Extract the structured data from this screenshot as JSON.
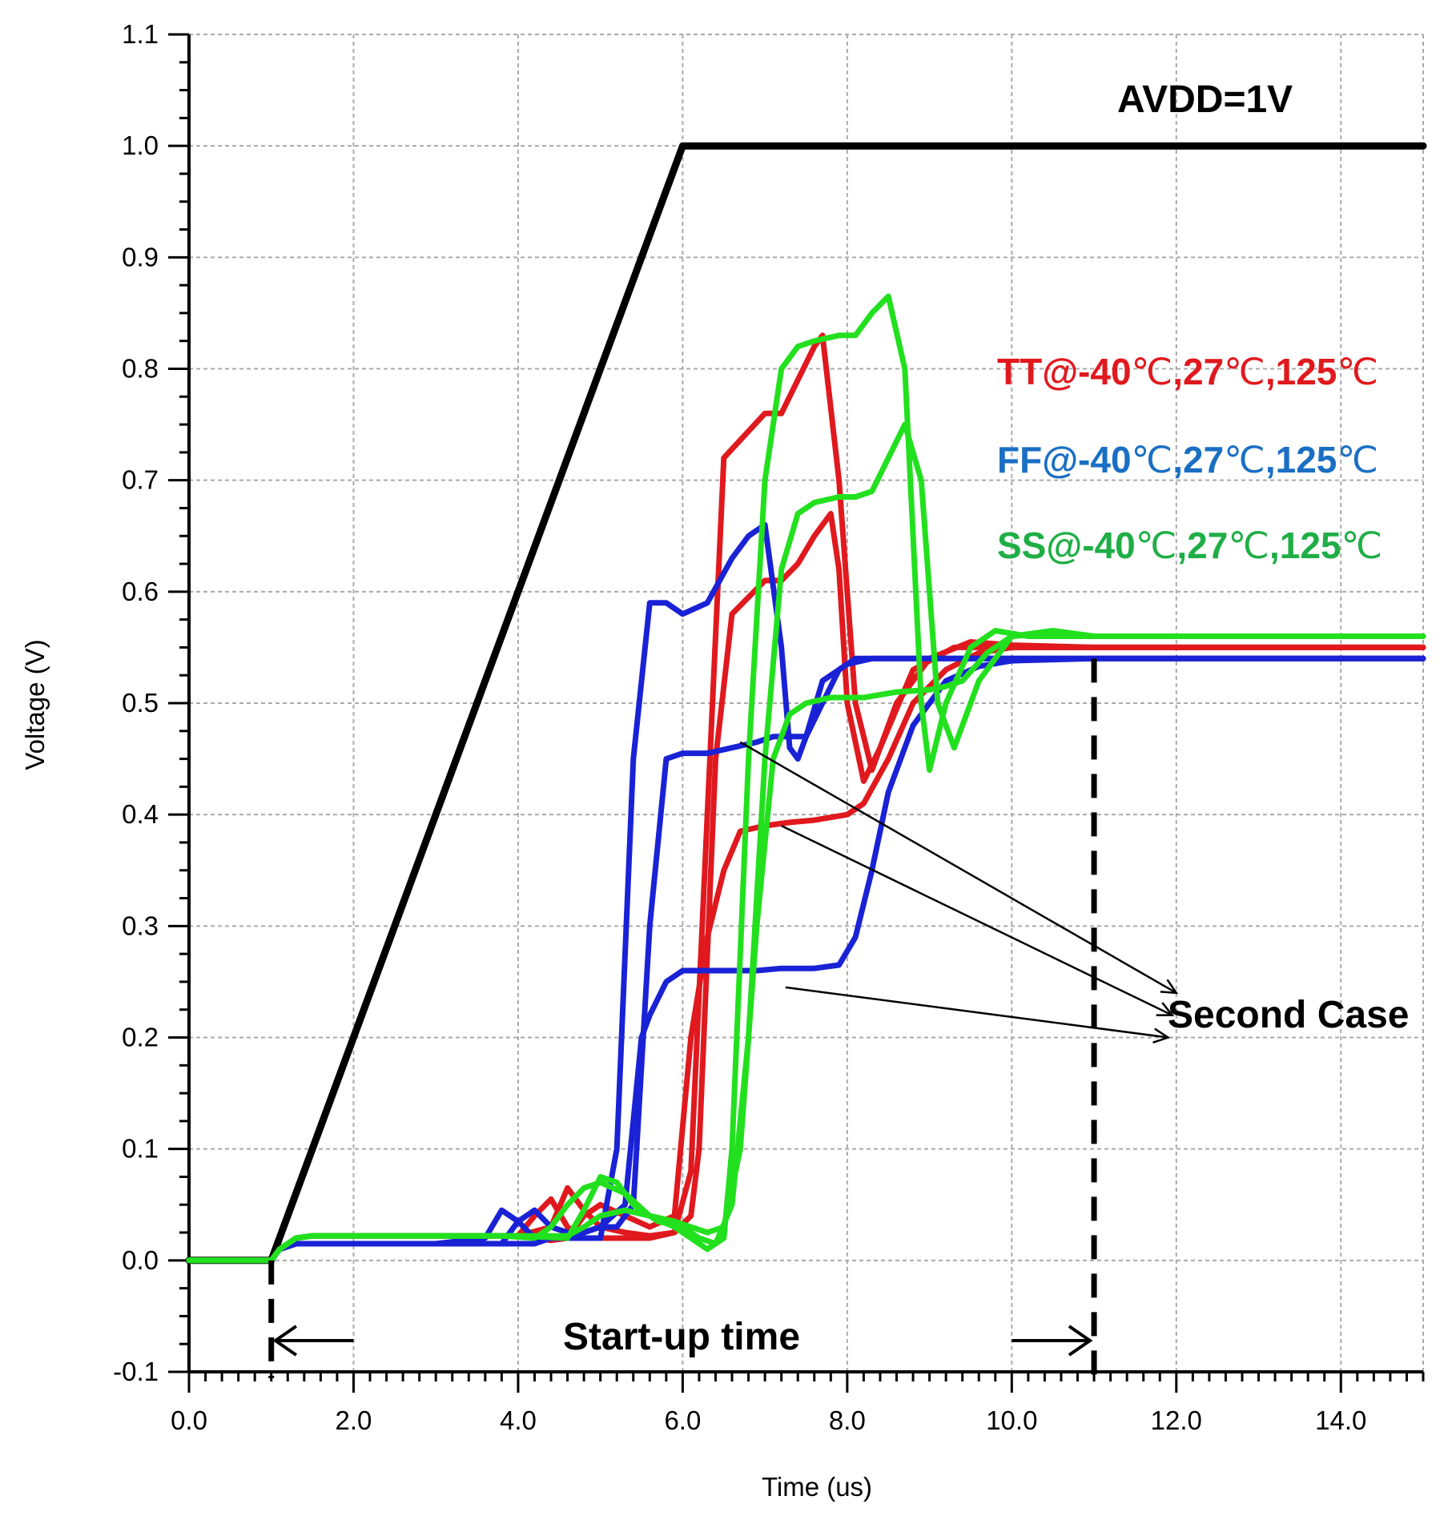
{
  "chart_data": {
    "type": "line",
    "xlabel": "Time (us)",
    "ylabel": "Voltage (V)",
    "xlim": [
      0,
      15
    ],
    "ylim": [
      -0.1,
      1.1
    ],
    "x_ticks": [
      "0.0",
      "2.0",
      "4.0",
      "6.0",
      "8.0",
      "10.0",
      "12.0",
      "14.0"
    ],
    "y_ticks": [
      "-0.1",
      "0.0",
      "0.1",
      "0.2",
      "0.3",
      "0.4",
      "0.5",
      "0.6",
      "0.7",
      "0.8",
      "0.9",
      "1.0",
      "1.1"
    ],
    "grid": true,
    "colors": {
      "avdd": "#000000",
      "tt": "#e0191e",
      "ff": "#1a22d6",
      "ss": "#22e01e",
      "legend_ff": "#1a6fc4",
      "legend_ss": "#1fae46"
    },
    "annotations": {
      "avdd": "AVDD=1V",
      "startup": "Start-up time",
      "second_case": "Second Case"
    },
    "legend": [
      {
        "prefix": "TT@-40",
        "c1": "℃",
        "mid1": ",27",
        "c2": "℃",
        "mid2": ",125",
        "c3": "℃"
      },
      {
        "prefix": "FF@-40",
        "c1": "℃",
        "mid1": ",27",
        "c2": "℃",
        "mid2": ",125",
        "c3": "℃"
      },
      {
        "prefix": "SS@-40",
        "c1": "℃",
        "mid1": ",27",
        "c2": "℃",
        "mid2": ",125",
        "c3": "℃"
      }
    ],
    "series": [
      {
        "name": "AVDD=1V",
        "group": "avdd",
        "x": [
          0,
          1.0,
          6.0,
          15
        ],
        "y": [
          0,
          0,
          1.0,
          1.0
        ]
      },
      {
        "group": "tt",
        "x": [
          0,
          1.0,
          1.1,
          1.3,
          1.5,
          2,
          3,
          4,
          4.2,
          4.4,
          4.6,
          4.8,
          5.0,
          5.3,
          5.6,
          5.9,
          6.1,
          6.3,
          6.5,
          7.0,
          7.2,
          7.4,
          7.6,
          7.7,
          7.9,
          8.1,
          8.3,
          8.6,
          9.0,
          9.5,
          10,
          11,
          15
        ],
        "y": [
          0,
          0,
          0.01,
          0.02,
          0.022,
          0.022,
          0.022,
          0.022,
          0.04,
          0.055,
          0.03,
          0.02,
          0.02,
          0.02,
          0.02,
          0.025,
          0.08,
          0.4,
          0.72,
          0.76,
          0.76,
          0.79,
          0.82,
          0.83,
          0.7,
          0.5,
          0.44,
          0.5,
          0.54,
          0.555,
          0.552,
          0.55,
          0.55
        ]
      },
      {
        "group": "tt",
        "x": [
          0,
          1.0,
          1.1,
          1.3,
          1.5,
          2,
          3,
          4,
          4.4,
          4.6,
          4.8,
          5.0,
          5.3,
          5.6,
          5.9,
          6.1,
          6.2,
          6.4,
          6.6,
          7.0,
          7.2,
          7.4,
          7.6,
          7.8,
          7.9,
          8.0,
          8.2,
          8.4,
          8.8,
          9.3,
          10,
          11,
          15
        ],
        "y": [
          0,
          0,
          0.01,
          0.02,
          0.022,
          0.022,
          0.022,
          0.022,
          0.03,
          0.065,
          0.045,
          0.03,
          0.025,
          0.022,
          0.025,
          0.04,
          0.1,
          0.45,
          0.58,
          0.61,
          0.61,
          0.625,
          0.65,
          0.67,
          0.62,
          0.5,
          0.43,
          0.46,
          0.53,
          0.55,
          0.55,
          0.55,
          0.55
        ]
      },
      {
        "group": "tt",
        "x": [
          0,
          1.0,
          1.1,
          1.3,
          1.5,
          2,
          3,
          4,
          4.4,
          4.6,
          4.8,
          5.0,
          5.3,
          5.6,
          5.9,
          6.1,
          6.3,
          6.5,
          6.7,
          7.0,
          7.3,
          7.6,
          8.0,
          8.2,
          8.5,
          8.8,
          9.2,
          9.6,
          10,
          11,
          15
        ],
        "y": [
          0,
          0,
          0.01,
          0.02,
          0.022,
          0.022,
          0.022,
          0.022,
          0.018,
          0.02,
          0.04,
          0.05,
          0.04,
          0.03,
          0.04,
          0.2,
          0.29,
          0.35,
          0.385,
          0.39,
          0.393,
          0.395,
          0.4,
          0.41,
          0.45,
          0.5,
          0.53,
          0.545,
          0.55,
          0.55,
          0.55
        ]
      },
      {
        "group": "ff",
        "x": [
          0,
          1.0,
          1.1,
          1.3,
          1.5,
          2,
          3,
          3.6,
          3.8,
          4.0,
          4.2,
          4.4,
          4.6,
          4.8,
          5.0,
          5.2,
          5.4,
          5.6,
          5.8,
          6.0,
          6.3,
          6.6,
          6.8,
          7.0,
          7.2,
          7.3,
          7.4,
          7.5,
          7.7,
          8.0,
          8.3,
          8.6,
          9,
          10,
          15
        ],
        "y": [
          0,
          0,
          0.01,
          0.015,
          0.015,
          0.015,
          0.015,
          0.02,
          0.045,
          0.035,
          0.02,
          0.02,
          0.02,
          0.02,
          0.02,
          0.1,
          0.45,
          0.59,
          0.59,
          0.58,
          0.59,
          0.63,
          0.65,
          0.66,
          0.55,
          0.46,
          0.45,
          0.47,
          0.52,
          0.535,
          0.54,
          0.54,
          0.54,
          0.54,
          0.54
        ]
      },
      {
        "group": "ff",
        "x": [
          0,
          1.0,
          1.1,
          1.3,
          1.5,
          2,
          3,
          3.8,
          4.0,
          4.2,
          4.4,
          4.6,
          4.8,
          5.0,
          5.2,
          5.4,
          5.6,
          5.8,
          6.0,
          6.3,
          6.6,
          6.9,
          7.1,
          7.3,
          7.5,
          7.7,
          7.9,
          8.1,
          8.3,
          8.6,
          9,
          10,
          15
        ],
        "y": [
          0,
          0,
          0.01,
          0.015,
          0.015,
          0.015,
          0.015,
          0.015,
          0.035,
          0.045,
          0.03,
          0.025,
          0.025,
          0.03,
          0.03,
          0.05,
          0.3,
          0.45,
          0.455,
          0.455,
          0.46,
          0.465,
          0.47,
          0.47,
          0.47,
          0.5,
          0.53,
          0.54,
          0.54,
          0.54,
          0.54,
          0.54,
          0.54
        ]
      },
      {
        "group": "ff",
        "x": [
          0,
          1.0,
          1.1,
          1.3,
          1.5,
          2,
          3,
          4,
          4.2,
          4.4,
          4.6,
          4.8,
          5.0,
          5.3,
          5.5,
          5.6,
          5.8,
          6.0,
          6.3,
          6.6,
          6.9,
          7.2,
          7.6,
          7.9,
          8.1,
          8.3,
          8.5,
          8.8,
          9.2,
          9.6,
          10,
          11,
          15
        ],
        "y": [
          0,
          0,
          0.01,
          0.015,
          0.015,
          0.015,
          0.015,
          0.015,
          0.015,
          0.02,
          0.02,
          0.025,
          0.03,
          0.05,
          0.2,
          0.22,
          0.25,
          0.26,
          0.26,
          0.26,
          0.26,
          0.262,
          0.262,
          0.265,
          0.29,
          0.35,
          0.42,
          0.48,
          0.52,
          0.533,
          0.538,
          0.54,
          0.54
        ]
      },
      {
        "group": "ss",
        "x": [
          0,
          1.0,
          1.1,
          1.3,
          1.5,
          2,
          3,
          3.8,
          4.2,
          4.4,
          4.6,
          4.8,
          5.0,
          5.3,
          5.6,
          5.9,
          6.1,
          6.3,
          6.5,
          6.6,
          6.8,
          7.0,
          7.2,
          7.4,
          7.6,
          7.9,
          8.1,
          8.3,
          8.5,
          8.7,
          8.8,
          8.9,
          9.0,
          9.2,
          9.5,
          9.8,
          10.2,
          11,
          15
        ],
        "y": [
          0,
          0,
          0.01,
          0.02,
          0.022,
          0.022,
          0.022,
          0.022,
          0.02,
          0.03,
          0.05,
          0.065,
          0.07,
          0.06,
          0.04,
          0.03,
          0.02,
          0.01,
          0.02,
          0.1,
          0.45,
          0.7,
          0.8,
          0.82,
          0.825,
          0.83,
          0.83,
          0.85,
          0.865,
          0.8,
          0.65,
          0.5,
          0.44,
          0.5,
          0.55,
          0.565,
          0.56,
          0.56,
          0.56
        ]
      },
      {
        "group": "ss",
        "x": [
          0,
          1.0,
          1.1,
          1.3,
          1.5,
          2,
          3,
          4,
          4.6,
          4.8,
          5.0,
          5.2,
          5.4,
          5.7,
          6.0,
          6.2,
          6.4,
          6.6,
          6.8,
          7.0,
          7.2,
          7.4,
          7.6,
          7.9,
          8.1,
          8.3,
          8.5,
          8.7,
          8.9,
          9.0,
          9.1,
          9.3,
          9.6,
          10.0,
          10.5,
          11,
          15
        ],
        "y": [
          0,
          0,
          0.01,
          0.02,
          0.022,
          0.022,
          0.022,
          0.022,
          0.02,
          0.045,
          0.075,
          0.07,
          0.05,
          0.035,
          0.03,
          0.02,
          0.015,
          0.05,
          0.2,
          0.45,
          0.62,
          0.67,
          0.68,
          0.685,
          0.685,
          0.69,
          0.72,
          0.75,
          0.7,
          0.6,
          0.5,
          0.46,
          0.52,
          0.56,
          0.565,
          0.56,
          0.56
        ]
      },
      {
        "group": "ss",
        "x": [
          0,
          1.0,
          1.1,
          1.3,
          1.5,
          2,
          3,
          4,
          4.6,
          4.8,
          5.0,
          5.3,
          5.6,
          5.9,
          6.1,
          6.3,
          6.5,
          6.7,
          6.9,
          7.1,
          7.3,
          7.5,
          7.8,
          8.2,
          8.6,
          9.0,
          9.2,
          9.4,
          9.7,
          10.0,
          10.5,
          11,
          15
        ],
        "y": [
          0,
          0,
          0.01,
          0.02,
          0.022,
          0.022,
          0.022,
          0.022,
          0.022,
          0.03,
          0.04,
          0.045,
          0.04,
          0.035,
          0.03,
          0.025,
          0.03,
          0.1,
          0.3,
          0.45,
          0.49,
          0.5,
          0.505,
          0.505,
          0.51,
          0.512,
          0.515,
          0.52,
          0.545,
          0.56,
          0.563,
          0.56,
          0.56
        ]
      }
    ]
  }
}
